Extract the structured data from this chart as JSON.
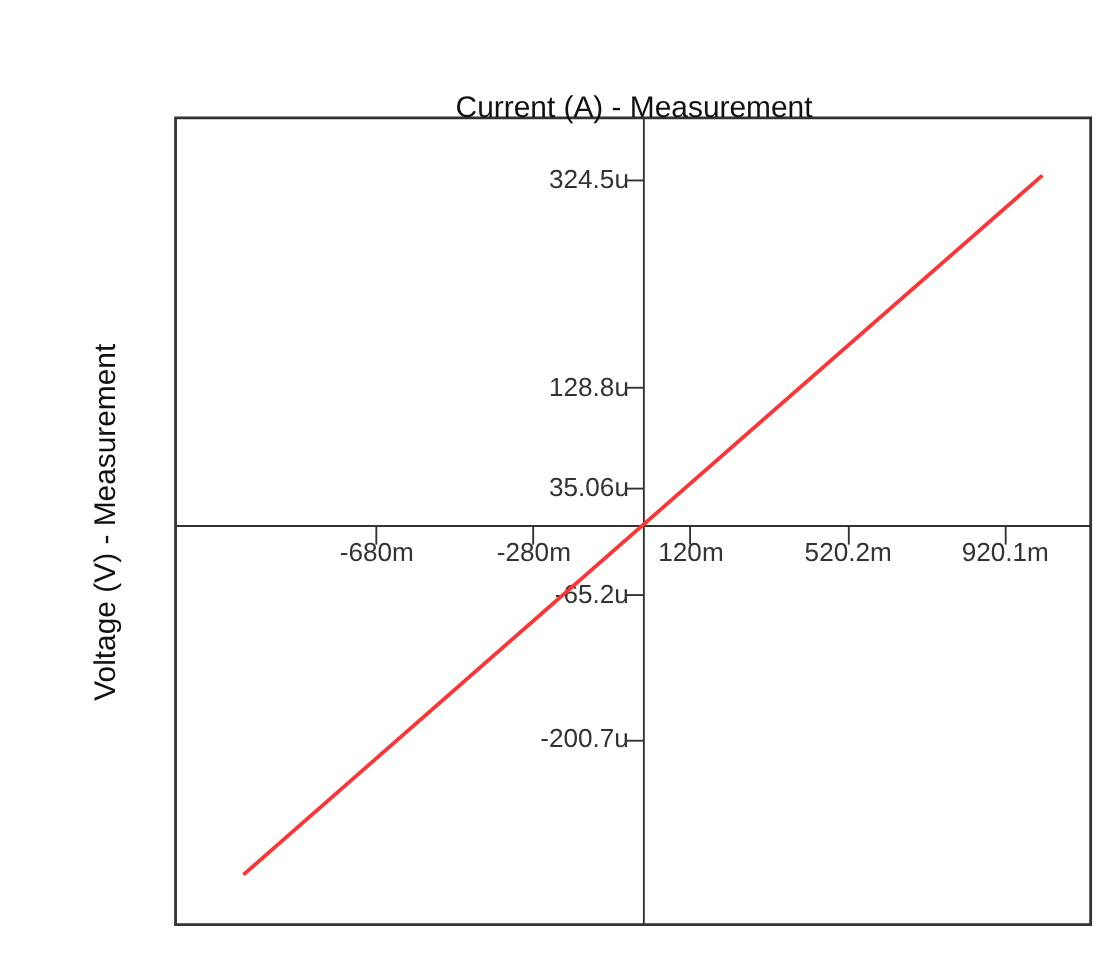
{
  "chart_data": {
    "type": "line",
    "xlabel": "Current (A) - Measurement",
    "ylabel": "Voltage (V) - Measurement",
    "x": [
      -1017,
      1017
    ],
    "series": [
      {
        "color": "#ff3333",
        "values": [
          -328,
          328
        ]
      }
    ],
    "xlim": [
      -1190,
      1140
    ],
    "ylim": [
      -375,
      382
    ],
    "xticks": [
      {
        "value": -680,
        "label": "-680m"
      },
      {
        "value": -280,
        "label": "-280m"
      },
      {
        "value": 120,
        "label": "120m"
      },
      {
        "value": 520.2,
        "label": "520.2m"
      },
      {
        "value": 920.1,
        "label": "920.1m"
      }
    ],
    "yticks": [
      {
        "value": 324.5,
        "label": "324.5u"
      },
      {
        "value": 128.8,
        "label": "128.8u"
      },
      {
        "value": 35.06,
        "label": "35.06u"
      },
      {
        "value": -65.2,
        "label": "-65.2u"
      },
      {
        "value": -200.7,
        "label": "-200.7u"
      }
    ],
    "grid": false,
    "marker": "none",
    "line_style": "solid"
  }
}
